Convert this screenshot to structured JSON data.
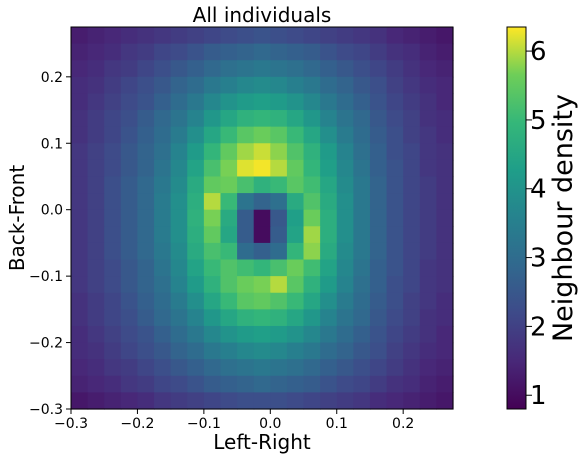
{
  "chart_data": {
    "type": "heatmap",
    "title": "All individuals",
    "xlabel": "Left-Right",
    "ylabel": "Back-Front",
    "xlim": [
      -0.3,
      0.275
    ],
    "ylim": [
      -0.3,
      0.275
    ],
    "x_ticks": [
      -0.3,
      -0.2,
      -0.1,
      0.0,
      0.1,
      0.2
    ],
    "x_tick_labels": [
      "−0.3",
      "−0.2",
      "−0.1",
      "0.0",
      "0.1",
      "0.2"
    ],
    "y_ticks": [
      -0.3,
      -0.2,
      -0.1,
      0.0,
      0.1,
      0.2
    ],
    "y_tick_labels": [
      "−0.3",
      "−0.2",
      "−0.1",
      "0.0",
      "0.1",
      "0.2"
    ],
    "grid_size": [
      23,
      23
    ],
    "cell_width": 0.025,
    "colormap": "viridis",
    "colorbar": {
      "label": "Neighbour density",
      "range": [
        0.8,
        6.35
      ],
      "ticks": [
        1,
        2,
        3,
        4,
        5,
        6
      ],
      "tick_labels": [
        "1",
        "2",
        "3",
        "4",
        "5",
        "6"
      ]
    },
    "values_note": "rows listed from top (y=+0.2625) to bottom (y=-0.2875), columns from left (x=-0.2875) to right (x=0.2625)",
    "values": [
      [
        1.3,
        1.4,
        1.5,
        1.6,
        1.7,
        1.8,
        1.9,
        2.0,
        2.1,
        2.2,
        2.3,
        2.4,
        2.3,
        2.2,
        2.1,
        2.0,
        1.9,
        1.8,
        1.7,
        1.5,
        1.4,
        1.3,
        1.2
      ],
      [
        1.4,
        1.5,
        1.6,
        1.8,
        1.9,
        2.1,
        2.2,
        2.4,
        2.6,
        2.7,
        2.8,
        2.9,
        2.8,
        2.7,
        2.6,
        2.4,
        2.2,
        2.1,
        1.9,
        1.7,
        1.6,
        1.4,
        1.3
      ],
      [
        1.5,
        1.6,
        1.8,
        1.9,
        2.1,
        2.3,
        2.5,
        2.7,
        2.9,
        3.1,
        3.2,
        3.3,
        3.2,
        3.1,
        2.9,
        2.7,
        2.5,
        2.3,
        2.1,
        1.9,
        1.7,
        1.5,
        1.4
      ],
      [
        1.6,
        1.7,
        1.9,
        2.1,
        2.3,
        2.5,
        2.8,
        3.0,
        3.3,
        3.5,
        3.7,
        3.8,
        3.7,
        3.5,
        3.3,
        3.0,
        2.8,
        2.5,
        2.3,
        2.0,
        1.8,
        1.6,
        1.5
      ],
      [
        1.6,
        1.8,
        2.0,
        2.2,
        2.4,
        2.7,
        3.0,
        3.3,
        3.7,
        4.0,
        4.2,
        4.3,
        4.2,
        4.0,
        3.7,
        3.3,
        3.0,
        2.7,
        2.4,
        2.1,
        1.9,
        1.7,
        1.5
      ],
      [
        1.7,
        1.9,
        2.1,
        2.3,
        2.6,
        2.9,
        3.2,
        3.6,
        4.1,
        4.5,
        4.8,
        4.9,
        4.8,
        4.5,
        4.1,
        3.6,
        3.2,
        2.9,
        2.5,
        2.2,
        2.0,
        1.7,
        1.6
      ],
      [
        1.7,
        1.9,
        2.1,
        2.4,
        2.7,
        3.0,
        3.4,
        3.9,
        4.5,
        5.0,
        5.4,
        5.6,
        5.4,
        5.0,
        4.5,
        3.9,
        3.4,
        3.0,
        2.6,
        2.3,
        2.0,
        1.8,
        1.6
      ],
      [
        1.8,
        2.0,
        2.2,
        2.5,
        2.8,
        3.1,
        3.6,
        4.2,
        4.9,
        5.5,
        5.9,
        6.1,
        5.8,
        5.3,
        4.8,
        4.2,
        3.6,
        3.1,
        2.7,
        2.3,
        2.1,
        1.8,
        1.7
      ],
      [
        1.8,
        2.0,
        2.2,
        2.5,
        2.8,
        3.2,
        3.7,
        4.4,
        5.2,
        5.7,
        6.2,
        6.3,
        6.0,
        5.5,
        4.9,
        4.3,
        3.7,
        3.2,
        2.7,
        2.4,
        2.1,
        1.8,
        1.7
      ],
      [
        1.8,
        2.0,
        2.3,
        2.6,
        2.9,
        3.3,
        3.8,
        4.6,
        5.5,
        5.6,
        5.2,
        4.8,
        5.0,
        5.4,
        5.1,
        4.5,
        3.8,
        3.3,
        2.8,
        2.4,
        2.1,
        1.9,
        1.7
      ],
      [
        1.8,
        2.0,
        2.3,
        2.6,
        2.9,
        3.4,
        3.9,
        4.7,
        6.0,
        5.0,
        3.2,
        2.8,
        3.1,
        4.6,
        5.3,
        4.6,
        3.9,
        3.3,
        2.8,
        2.4,
        2.1,
        1.9,
        1.7
      ],
      [
        1.8,
        2.0,
        2.3,
        2.6,
        2.9,
        3.4,
        3.9,
        4.8,
        5.7,
        4.6,
        2.6,
        1.0,
        2.5,
        4.3,
        5.6,
        4.7,
        3.9,
        3.3,
        2.8,
        2.4,
        2.1,
        1.9,
        1.7
      ],
      [
        1.8,
        2.0,
        2.3,
        2.6,
        2.9,
        3.4,
        3.9,
        4.7,
        5.5,
        4.5,
        2.6,
        1.0,
        2.6,
        4.4,
        5.9,
        4.7,
        3.9,
        3.3,
        2.8,
        2.4,
        2.1,
        1.9,
        1.7
      ],
      [
        1.8,
        2.0,
        2.3,
        2.6,
        2.9,
        3.3,
        3.8,
        4.6,
        5.2,
        5.0,
        3.0,
        2.7,
        3.0,
        4.9,
        5.8,
        4.6,
        3.8,
        3.3,
        2.8,
        2.4,
        2.1,
        1.9,
        1.7
      ],
      [
        1.8,
        2.0,
        2.2,
        2.5,
        2.8,
        3.2,
        3.7,
        4.4,
        5.0,
        5.3,
        5.1,
        4.9,
        5.2,
        5.6,
        5.1,
        4.4,
        3.7,
        3.2,
        2.7,
        2.4,
        2.1,
        1.8,
        1.7
      ],
      [
        1.8,
        2.0,
        2.2,
        2.5,
        2.8,
        3.1,
        3.6,
        4.2,
        4.8,
        5.3,
        5.6,
        5.7,
        6.0,
        5.4,
        4.8,
        4.2,
        3.6,
        3.1,
        2.7,
        2.3,
        2.1,
        1.8,
        1.7
      ],
      [
        1.7,
        1.9,
        2.1,
        2.4,
        2.7,
        3.0,
        3.4,
        3.9,
        4.5,
        5.0,
        5.4,
        5.5,
        5.3,
        5.0,
        4.5,
        3.9,
        3.4,
        3.0,
        2.6,
        2.3,
        2.0,
        1.8,
        1.6
      ],
      [
        1.7,
        1.9,
        2.1,
        2.3,
        2.6,
        2.9,
        3.2,
        3.6,
        4.1,
        4.5,
        4.8,
        4.9,
        4.8,
        4.5,
        4.1,
        3.6,
        3.2,
        2.9,
        2.5,
        2.2,
        2.0,
        1.7,
        1.6
      ],
      [
        1.6,
        1.8,
        2.0,
        2.2,
        2.4,
        2.7,
        3.0,
        3.3,
        3.7,
        4.0,
        4.2,
        4.3,
        4.2,
        4.0,
        3.7,
        3.3,
        3.0,
        2.7,
        2.4,
        2.1,
        1.9,
        1.7,
        1.5
      ],
      [
        1.6,
        1.7,
        1.9,
        2.1,
        2.3,
        2.5,
        2.8,
        3.0,
        3.3,
        3.5,
        3.7,
        3.8,
        3.7,
        3.5,
        3.3,
        3.0,
        2.8,
        2.5,
        2.3,
        2.0,
        1.8,
        1.6,
        1.5
      ],
      [
        1.5,
        1.6,
        1.8,
        1.9,
        2.1,
        2.3,
        2.5,
        2.7,
        2.9,
        3.1,
        3.2,
        3.3,
        3.2,
        3.1,
        2.9,
        2.7,
        2.5,
        2.3,
        2.1,
        1.9,
        1.7,
        1.5,
        1.4
      ],
      [
        1.4,
        1.5,
        1.6,
        1.8,
        1.9,
        2.1,
        2.2,
        2.4,
        2.6,
        2.7,
        2.8,
        2.9,
        2.8,
        2.7,
        2.6,
        2.4,
        2.2,
        2.1,
        1.9,
        1.7,
        1.6,
        1.4,
        1.3
      ],
      [
        1.2,
        1.3,
        1.4,
        1.5,
        1.6,
        1.8,
        1.9,
        2.0,
        2.1,
        2.2,
        2.3,
        2.3,
        2.3,
        2.2,
        2.1,
        2.0,
        1.9,
        1.8,
        1.6,
        1.5,
        1.4,
        1.3,
        1.2
      ]
    ]
  }
}
